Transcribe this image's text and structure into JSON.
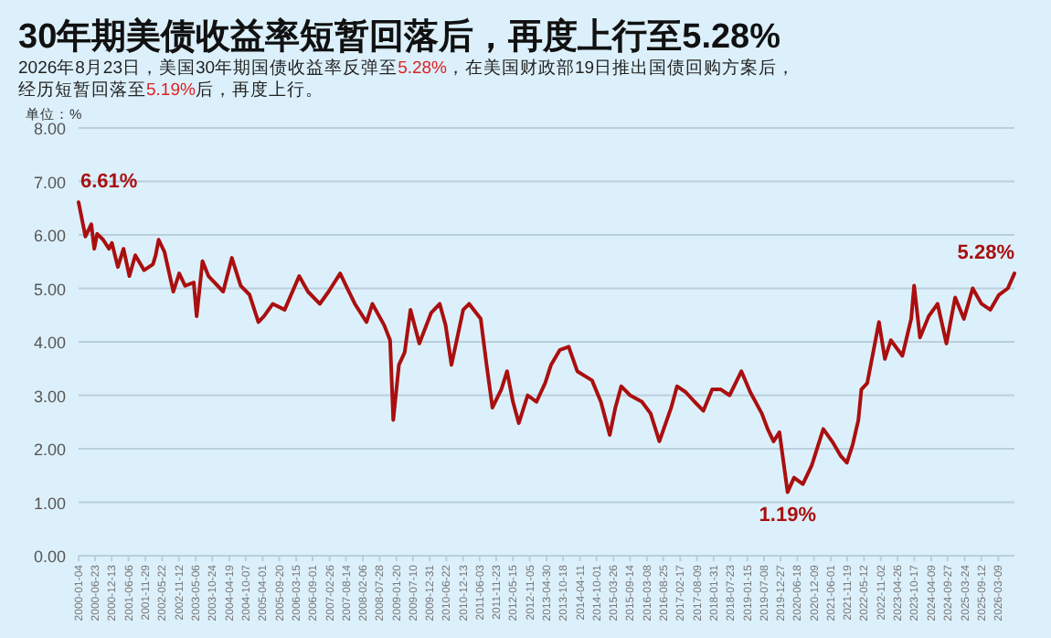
{
  "chart_data": {
    "type": "line",
    "title": "30年期美债收益率短暂回落后，再度上行至5.28%",
    "subtitle": "2026年8月23日，美国30年期国债收益率反弹至5.28%，在美国财政部19日推出国债回购方案后，经历短暂回落至5.19%后，再度上行。",
    "ylabel": "单位：%",
    "annotations": [
      {
        "text": "6.61%",
        "x": "2000-01-04",
        "y": 6.61
      },
      {
        "text": "1.19%",
        "x": "2020-03-09",
        "y": 1.19
      },
      {
        "text": "5.28%",
        "x": "2026-08-23",
        "y": 5.28
      }
    ],
    "x": [
      "2000-01-04",
      "2000-03",
      "2000-05",
      "2000-06",
      "2000-07",
      "2000-09",
      "2000-11",
      "2000-12",
      "2001-02",
      "2001-04",
      "2001-06",
      "2001-08",
      "2001-11",
      "2002-02",
      "2002-03",
      "2002-04",
      "2002-06",
      "2002-09",
      "2002-11",
      "2003-01",
      "2003-04",
      "2003-05",
      "2003-07",
      "2003-09",
      "2004-02",
      "2004-05",
      "2004-08",
      "2004-11",
      "2005-02",
      "2005-04",
      "2005-07",
      "2005-11",
      "2006-04",
      "2006-07",
      "2006-11",
      "2007-02",
      "2007-06",
      "2007-08",
      "2007-11",
      "2008-03",
      "2008-05",
      "2008-09",
      "2008-11",
      "2008-12-18",
      "2009-02",
      "2009-04",
      "2009-06",
      "2009-09",
      "2010-01",
      "2010-04",
      "2010-06",
      "2010-08",
      "2010-12",
      "2011-02",
      "2011-06",
      "2011-08",
      "2011-10",
      "2012-01",
      "2012-03",
      "2012-05",
      "2012-07",
      "2012-10",
      "2013-01",
      "2013-04",
      "2013-06",
      "2013-09",
      "2013-12",
      "2014-03",
      "2014-08",
      "2014-11",
      "2015-02",
      "2015-04",
      "2015-06",
      "2015-09",
      "2016-01",
      "2016-04",
      "2016-07",
      "2016-11",
      "2017-01",
      "2017-04",
      "2017-07",
      "2017-10",
      "2018-01",
      "2018-04",
      "2018-07",
      "2018-11",
      "2019-02",
      "2019-06",
      "2019-08",
      "2019-10",
      "2019-12",
      "2020-03-09",
      "2020-05",
      "2020-08",
      "2020-11",
      "2021-03",
      "2021-06",
      "2021-09",
      "2021-11",
      "2022-01",
      "2022-03",
      "2022-04",
      "2022-06",
      "2022-10",
      "2022-12",
      "2023-02",
      "2023-06",
      "2023-09",
      "2023-10",
      "2023-12",
      "2024-03",
      "2024-06",
      "2024-09",
      "2024-12",
      "2025-03",
      "2025-06",
      "2025-09",
      "2025-12",
      "2026-03",
      "2026-06",
      "2026-08-23"
    ],
    "series": [
      {
        "color": "#aa0f0f",
        "values": [
          6.61,
          5.97,
          6.2,
          5.74,
          6.02,
          5.91,
          5.74,
          5.85,
          5.4,
          5.74,
          5.23,
          5.62,
          5.34,
          5.45,
          5.62,
          5.91,
          5.68,
          4.94,
          5.28,
          5.05,
          5.11,
          4.48,
          5.51,
          5.23,
          4.94,
          5.57,
          5.05,
          4.88,
          4.37,
          4.48,
          4.71,
          4.6,
          5.23,
          4.94,
          4.71,
          4.94,
          5.28,
          5.05,
          4.71,
          4.37,
          4.71,
          4.31,
          4.03,
          2.54,
          3.57,
          3.8,
          4.6,
          3.97,
          4.54,
          4.71,
          4.31,
          3.57,
          4.6,
          4.71,
          4.43,
          3.57,
          2.77,
          3.11,
          3.45,
          2.88,
          2.48,
          3.0,
          2.88,
          3.23,
          3.57,
          3.85,
          3.91,
          3.45,
          3.28,
          2.88,
          2.26,
          2.77,
          3.17,
          3.0,
          2.88,
          2.66,
          2.14,
          2.77,
          3.17,
          3.06,
          2.88,
          2.71,
          3.11,
          3.11,
          3.0,
          3.45,
          3.06,
          2.66,
          2.37,
          2.14,
          2.31,
          1.19,
          1.46,
          1.34,
          1.69,
          2.37,
          2.14,
          1.86,
          1.74,
          2.08,
          2.54,
          3.11,
          3.23,
          4.37,
          3.68,
          4.03,
          3.74,
          4.43,
          5.05,
          4.08,
          4.48,
          4.71,
          3.97,
          4.83,
          4.43,
          5.0,
          4.71,
          4.6,
          4.88,
          5.0,
          5.28
        ]
      }
    ],
    "xlim": [
      "2000-01-04",
      "2026-08-23"
    ],
    "xticks": [
      "2000-01-04",
      "2000-06-23",
      "2000-12-13",
      "2001-06-06",
      "2001-11-29",
      "2002-05-22",
      "2002-11-12",
      "2003-05-06",
      "2003-10-24",
      "2004-04-19",
      "2004-10-07",
      "2005-04-01",
      "2005-09-20",
      "2006-03-15",
      "2006-09-01",
      "2007-02-26",
      "2007-08-14",
      "2008-02-06",
      "2008-07-28",
      "2009-01-20",
      "2009-07-10",
      "2009-12-31",
      "2010-06-22",
      "2010-12-13",
      "2011-06-03",
      "2011-11-23",
      "2012-05-15",
      "2012-11-05",
      "2013-04-30",
      "2013-10-18",
      "2014-04-11",
      "2014-10-01",
      "2015-03-26",
      "2015-09-14",
      "2016-03-08",
      "2016-08-25",
      "2017-02-17",
      "2017-08-09",
      "2018-01-31",
      "2018-07-23",
      "2019-01-15",
      "2019-07-08",
      "2019-12-27",
      "2020-06-18",
      "2020-12-09",
      "2021-06-01",
      "2021-11-19",
      "2022-05-12",
      "2022-11-02",
      "2023-04-26",
      "2023-10-17",
      "2024-04-09",
      "2024-09-27",
      "2025-03-24",
      "2025-09-12",
      "2026-03-09"
    ],
    "ylim": [
      0,
      8
    ],
    "yticks": [
      {
        "value": 0,
        "label": "0.00"
      },
      {
        "value": 1,
        "label": "1.00"
      },
      {
        "value": 2,
        "label": "2.00"
      },
      {
        "value": 3,
        "label": "3.00"
      },
      {
        "value": 4,
        "label": "4.00"
      },
      {
        "value": 5,
        "label": "5.00"
      },
      {
        "value": 6,
        "label": "6.00"
      },
      {
        "value": 7,
        "label": "7.00"
      },
      {
        "value": 8,
        "label": "8.00"
      }
    ],
    "grid": "y"
  }
}
